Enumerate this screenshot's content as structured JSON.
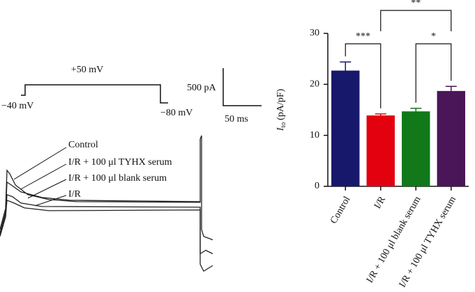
{
  "protocol": {
    "high": "+50 mV",
    "hold": "−40 mV",
    "after": "−80 mV"
  },
  "scale_bar": {
    "current": "500 pA",
    "time": "50 ms"
  },
  "trace_labels": [
    "Control",
    "I/R + 100 μl TYHX serum",
    "I/R + 100 μl blank serum",
    "I/R"
  ],
  "chart_data": {
    "type": "bar",
    "y_label": {
      "symbol": "I",
      "subscript": "to",
      "unit": "(pA/pF)"
    },
    "categories": [
      "Control",
      "I/R",
      "I/R + 100 μl blank serum",
      "I/R + 100 μl TYHX serum"
    ],
    "values": [
      22.7,
      13.9,
      14.7,
      18.7
    ],
    "errors": [
      1.7,
      0.3,
      0.6,
      0.9
    ],
    "colors": [
      "#17186b",
      "#e3000f",
      "#11791a",
      "#4a1658"
    ],
    "ylim": [
      0,
      30
    ],
    "yticks": [
      0,
      10,
      20,
      30
    ],
    "annotations": [
      {
        "text": "***"
      },
      {
        "text": "*"
      },
      {
        "text": "**"
      }
    ]
  }
}
